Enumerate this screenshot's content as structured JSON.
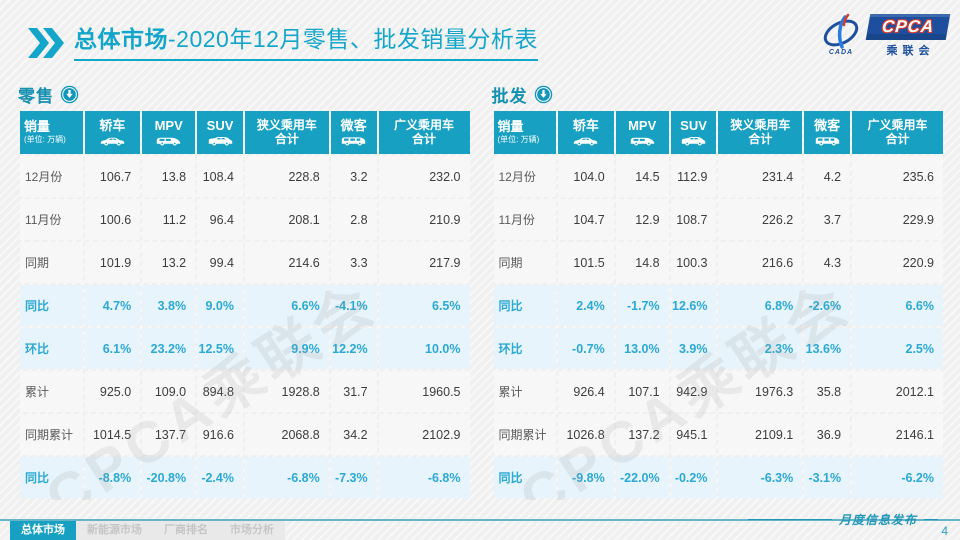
{
  "title": {
    "bold": "总体市场",
    "rest": "-2020年12月零售、批发销量分析表"
  },
  "logo": {
    "cpca": "CPCA",
    "sub": "乘联会",
    "cada": "CADA"
  },
  "watermark": "CPCA乘联会",
  "header": {
    "sales_main": "销量",
    "sales_sub": "(单位: 万辆)",
    "sedan": "轿车",
    "mpv": "MPV",
    "suv": "SUV",
    "narrow_l1": "狭义乘用车",
    "narrow_l2": "合计",
    "micro": "微客",
    "broad_l1": "广义乘用车",
    "broad_l2": "合计"
  },
  "row_labels": [
    "12月份",
    "11月份",
    "同期",
    "同比",
    "环比",
    "累计",
    "同期累计",
    "同比"
  ],
  "row_types": [
    "normal",
    "normal",
    "normal",
    "pct",
    "pct",
    "normal",
    "normal",
    "pct"
  ],
  "retail": {
    "title": "零售",
    "rows": [
      [
        "106.7",
        "13.8",
        "108.4",
        "228.8",
        "3.2",
        "232.0"
      ],
      [
        "100.6",
        "11.2",
        "96.4",
        "208.1",
        "2.8",
        "210.9"
      ],
      [
        "101.9",
        "13.2",
        "99.4",
        "214.6",
        "3.3",
        "217.9"
      ],
      [
        "4.7%",
        "3.8%",
        "9.0%",
        "6.6%",
        "-4.1%",
        "6.5%"
      ],
      [
        "6.1%",
        "23.2%",
        "12.5%",
        "9.9%",
        "12.2%",
        "10.0%"
      ],
      [
        "925.0",
        "109.0",
        "894.8",
        "1928.8",
        "31.7",
        "1960.5"
      ],
      [
        "1014.5",
        "137.7",
        "916.6",
        "2068.8",
        "34.2",
        "2102.9"
      ],
      [
        "-8.8%",
        "-20.8%",
        "-2.4%",
        "-6.8%",
        "-7.3%",
        "-6.8%"
      ]
    ]
  },
  "wholesale": {
    "title": "批发",
    "rows": [
      [
        "104.0",
        "14.5",
        "112.9",
        "231.4",
        "4.2",
        "235.6"
      ],
      [
        "104.7",
        "12.9",
        "108.7",
        "226.2",
        "3.7",
        "229.9"
      ],
      [
        "101.5",
        "14.8",
        "100.3",
        "216.6",
        "4.3",
        "220.9"
      ],
      [
        "2.4%",
        "-1.7%",
        "12.6%",
        "6.8%",
        "-2.6%",
        "6.6%"
      ],
      [
        "-0.7%",
        "13.0%",
        "3.9%",
        "2.3%",
        "13.6%",
        "2.5%"
      ],
      [
        "926.4",
        "107.1",
        "942.9",
        "1976.3",
        "35.8",
        "2012.1"
      ],
      [
        "1026.8",
        "137.2",
        "945.1",
        "2109.1",
        "36.9",
        "2146.1"
      ],
      [
        "-9.8%",
        "-22.0%",
        "-0.2%",
        "-6.3%",
        "-3.1%",
        "-6.2%"
      ]
    ]
  },
  "tabs": [
    {
      "label": "总体市场"
    },
    {
      "label": "新能源市场"
    },
    {
      "label": "厂商排名"
    },
    {
      "label": "市场分析"
    }
  ],
  "footer": {
    "label": "月度信息发布",
    "page": "4"
  }
}
